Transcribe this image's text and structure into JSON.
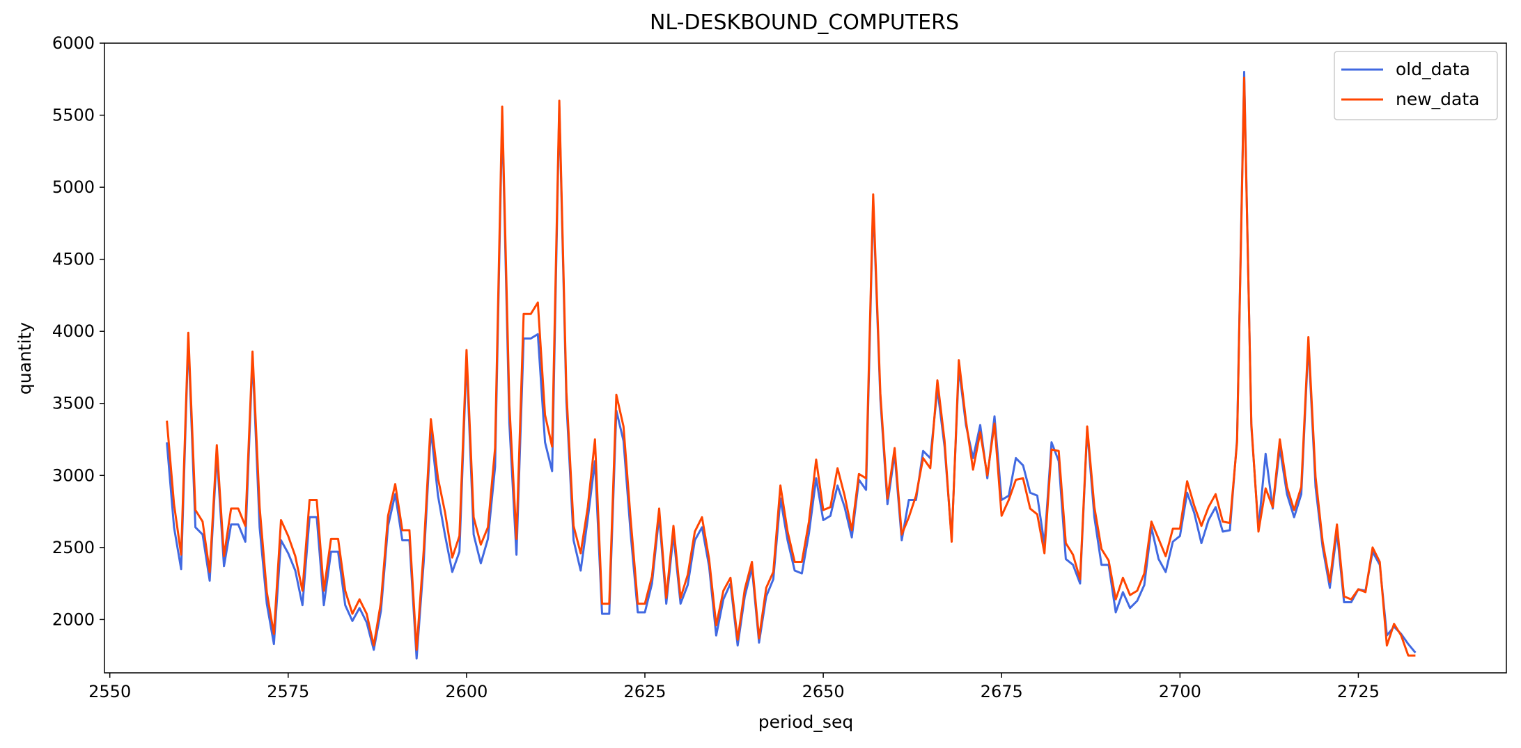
{
  "chart_data": {
    "type": "line",
    "title": "NL-DESKBOUND_COMPUTERS",
    "xlabel": "period_seq",
    "ylabel": "quantity",
    "xlim": [
      2549.25,
      2745.75
    ],
    "ylim": [
      1630,
      6000
    ],
    "xticks": [
      2550,
      2575,
      2600,
      2625,
      2650,
      2675,
      2700,
      2725
    ],
    "yticks": [
      2000,
      2500,
      3000,
      3500,
      4000,
      4500,
      5000,
      5500,
      6000
    ],
    "grid": false,
    "legend_position": "top-right",
    "x": [
      2558,
      2559,
      2560,
      2561,
      2562,
      2563,
      2564,
      2565,
      2566,
      2567,
      2568,
      2569,
      2570,
      2571,
      2572,
      2573,
      2574,
      2575,
      2576,
      2577,
      2578,
      2579,
      2580,
      2581,
      2582,
      2583,
      2584,
      2585,
      2586,
      2587,
      2588,
      2589,
      2590,
      2591,
      2592,
      2593,
      2594,
      2595,
      2596,
      2597,
      2598,
      2599,
      2600,
      2601,
      2602,
      2603,
      2604,
      2605,
      2606,
      2607,
      2608,
      2609,
      2610,
      2611,
      2612,
      2613,
      2614,
      2615,
      2616,
      2617,
      2618,
      2619,
      2620,
      2621,
      2622,
      2623,
      2624,
      2625,
      2626,
      2627,
      2628,
      2629,
      2630,
      2631,
      2632,
      2633,
      2634,
      2635,
      2636,
      2637,
      2638,
      2639,
      2640,
      2641,
      2642,
      2643,
      2644,
      2645,
      2646,
      2647,
      2648,
      2649,
      2650,
      2651,
      2652,
      2653,
      2654,
      2655,
      2656,
      2657,
      2658,
      2659,
      2660,
      2661,
      2662,
      2663,
      2664,
      2665,
      2666,
      2667,
      2668,
      2669,
      2670,
      2671,
      2672,
      2673,
      2674,
      2675,
      2676,
      2677,
      2678,
      2679,
      2680,
      2681,
      2682,
      2683,
      2684,
      2685,
      2686,
      2687,
      2688,
      2689,
      2690,
      2691,
      2692,
      2693,
      2694,
      2695,
      2696,
      2697,
      2698,
      2699,
      2700,
      2701,
      2702,
      2703,
      2704,
      2705,
      2706,
      2707,
      2708,
      2709,
      2710,
      2711,
      2712,
      2713,
      2714,
      2715,
      2716,
      2717,
      2718,
      2719,
      2720,
      2721,
      2722,
      2723,
      2724,
      2725,
      2726,
      2727,
      2728,
      2729,
      2730,
      2731,
      2732,
      2733
    ],
    "series": [
      {
        "name": "old_data",
        "color": "#4169e1",
        "values": [
          3230,
          2640,
          2350,
          3950,
          2640,
          2590,
          2270,
          3150,
          2370,
          2660,
          2660,
          2540,
          3820,
          2640,
          2110,
          1830,
          2550,
          2460,
          2340,
          2100,
          2710,
          2710,
          2100,
          2470,
          2470,
          2100,
          1990,
          2080,
          1980,
          1790,
          2060,
          2650,
          2870,
          2550,
          2550,
          1730,
          2400,
          3320,
          2860,
          2580,
          2330,
          2470,
          3820,
          2590,
          2390,
          2560,
          3060,
          5500,
          3360,
          2450,
          3950,
          3950,
          3980,
          3230,
          3030,
          5560,
          3510,
          2550,
          2340,
          2700,
          3100,
          2040,
          2040,
          3450,
          3240,
          2600,
          2050,
          2050,
          2250,
          2720,
          2110,
          2590,
          2110,
          2240,
          2550,
          2640,
          2370,
          1890,
          2140,
          2250,
          1820,
          2160,
          2360,
          1840,
          2160,
          2280,
          2840,
          2550,
          2340,
          2320,
          2600,
          2980,
          2690,
          2720,
          2930,
          2780,
          2570,
          2970,
          2900,
          4900,
          3530,
          2800,
          3150,
          2550,
          2830,
          2830,
          3170,
          3120,
          3600,
          3200,
          2560,
          3750,
          3350,
          3120,
          3350,
          2980,
          3410,
          2830,
          2860,
          3120,
          3070,
          2880,
          2860,
          2520,
          3230,
          3100,
          2420,
          2380,
          2250,
          3320,
          2710,
          2380,
          2380,
          2050,
          2190,
          2080,
          2130,
          2240,
          2640,
          2420,
          2330,
          2540,
          2580,
          2880,
          2740,
          2530,
          2690,
          2780,
          2610,
          2620,
          3250,
          5800,
          3340,
          2630,
          3150,
          2770,
          3190,
          2870,
          2710,
          2870,
          3920,
          2920,
          2500,
          2220,
          2610,
          2120,
          2120,
          2210,
          2200,
          2470,
          2380,
          1890,
          1950,
          1900,
          1830,
          1770
        ]
      },
      {
        "name": "new_data",
        "color": "#ff4500",
        "values": [
          3380,
          2800,
          2450,
          3990,
          2760,
          2680,
          2330,
          3210,
          2440,
          2770,
          2770,
          2650,
          3860,
          2780,
          2190,
          1900,
          2690,
          2580,
          2440,
          2200,
          2830,
          2830,
          2200,
          2560,
          2560,
          2200,
          2040,
          2140,
          2040,
          1820,
          2120,
          2720,
          2940,
          2620,
          2620,
          1790,
          2480,
          3390,
          2980,
          2740,
          2430,
          2580,
          3870,
          2710,
          2520,
          2640,
          3190,
          5560,
          3490,
          2560,
          4120,
          4120,
          4200,
          3420,
          3200,
          5600,
          3580,
          2650,
          2460,
          2780,
          3250,
          2110,
          2110,
          3560,
          3340,
          2700,
          2110,
          2110,
          2300,
          2770,
          2150,
          2650,
          2150,
          2310,
          2610,
          2710,
          2420,
          1960,
          2200,
          2290,
          1860,
          2210,
          2400,
          1870,
          2220,
          2330,
          2930,
          2610,
          2400,
          2400,
          2680,
          3110,
          2760,
          2780,
          3050,
          2860,
          2620,
          3010,
          2980,
          4950,
          3570,
          2840,
          3190,
          2590,
          2710,
          2860,
          3120,
          3050,
          3660,
          3240,
          2540,
          3800,
          3380,
          3040,
          3300,
          3000,
          3360,
          2720,
          2830,
          2970,
          2980,
          2770,
          2730,
          2460,
          3180,
          3170,
          2530,
          2450,
          2280,
          3340,
          2780,
          2490,
          2410,
          2140,
          2290,
          2170,
          2200,
          2320,
          2680,
          2560,
          2440,
          2630,
          2630,
          2960,
          2790,
          2650,
          2780,
          2870,
          2680,
          2670,
          3230,
          5760,
          3360,
          2610,
          2910,
          2780,
          3250,
          2920,
          2760,
          2920,
          3960,
          2990,
          2540,
          2260,
          2660,
          2160,
          2140,
          2210,
          2190,
          2500,
          2400,
          1820,
          1970,
          1890,
          1750,
          1750
        ]
      }
    ]
  }
}
